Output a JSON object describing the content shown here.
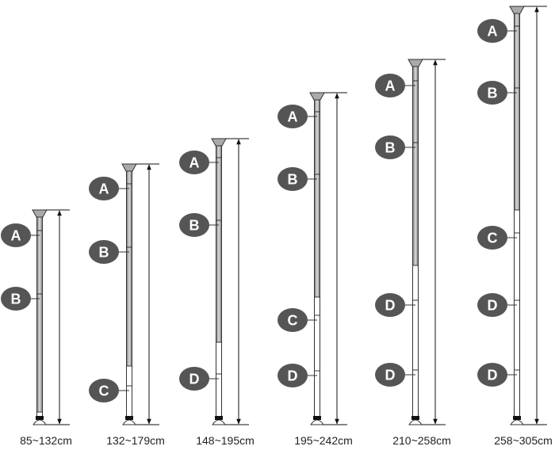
{
  "poles": [
    {
      "parts": [
        "A",
        "B"
      ],
      "range": "85~132cm"
    },
    {
      "parts": [
        "A",
        "B",
        "C"
      ],
      "range": "132~179cm"
    },
    {
      "parts": [
        "A",
        "B",
        "D"
      ],
      "range": "148~195cm"
    },
    {
      "parts": [
        "A",
        "B",
        "C",
        "D"
      ],
      "range": "195~242cm"
    },
    {
      "parts": [
        "A",
        "B",
        "D",
        "D"
      ],
      "range": "210~258cm"
    },
    {
      "parts": [
        "A",
        "B",
        "C",
        "D",
        "D"
      ],
      "range": "258~305cm"
    }
  ]
}
